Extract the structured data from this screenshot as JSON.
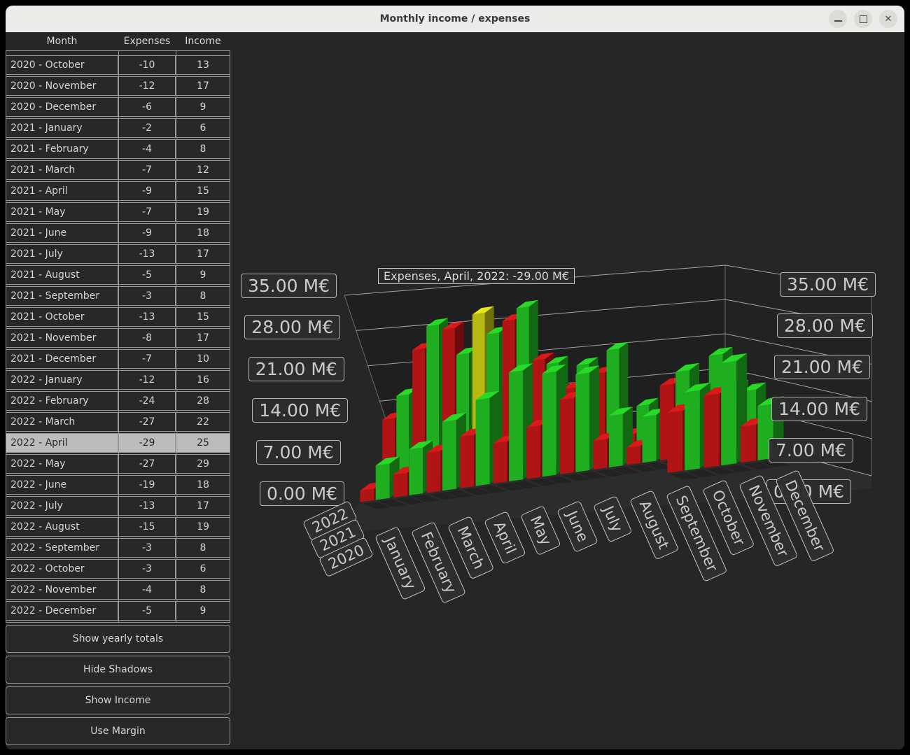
{
  "window": {
    "title": "Monthly income / expenses",
    "controls": {
      "minimize": "minimize",
      "maximize": "maximize",
      "close": "close"
    }
  },
  "table": {
    "columns": [
      "Month",
      "Expenses",
      "Income"
    ],
    "rows": [
      [
        "2020 - October",
        "-10",
        "13"
      ],
      [
        "2020 - November",
        "-12",
        "17"
      ],
      [
        "2020 - December",
        "-6",
        "9"
      ],
      [
        "2021 - January",
        "-2",
        "6"
      ],
      [
        "2021 - February",
        "-4",
        "8"
      ],
      [
        "2021 - March",
        "-7",
        "12"
      ],
      [
        "2021 - April",
        "-9",
        "15"
      ],
      [
        "2021 - May",
        "-7",
        "19"
      ],
      [
        "2021 - June",
        "-9",
        "18"
      ],
      [
        "2021 - July",
        "-13",
        "17"
      ],
      [
        "2021 - August",
        "-5",
        "9"
      ],
      [
        "2021 - September",
        "-3",
        "8"
      ],
      [
        "2021 - October",
        "-13",
        "15"
      ],
      [
        "2021 - November",
        "-8",
        "17"
      ],
      [
        "2021 - December",
        "-7",
        "10"
      ],
      [
        "2022 - January",
        "-12",
        "16"
      ],
      [
        "2022 - February",
        "-24",
        "28"
      ],
      [
        "2022 - March",
        "-27",
        "22"
      ],
      [
        "2022 - April",
        "-29",
        "25"
      ],
      [
        "2022 - May",
        "-27",
        "29"
      ],
      [
        "2022 - June",
        "-19",
        "18"
      ],
      [
        "2022 - July",
        "-13",
        "17"
      ],
      [
        "2022 - August",
        "-15",
        "19"
      ],
      [
        "2022 - September",
        "-3",
        "8"
      ],
      [
        "2022 - October",
        "-3",
        "6"
      ],
      [
        "2022 - November",
        "-4",
        "8"
      ],
      [
        "2022 - December",
        "-5",
        "9"
      ]
    ],
    "selected_row": "2022 - April"
  },
  "buttons": [
    "Show yearly totals",
    "Hide Shadows",
    "Show Income",
    "Use Margin"
  ],
  "chart_data": {
    "type": "bar",
    "projection": "3d",
    "tooltip": "Expenses, April, 2022: -29.00 M€",
    "value_axis": {
      "labels": [
        "35.00 M€",
        "28.00 M€",
        "21.00 M€",
        "14.00 M€",
        "7.00 M€",
        "0.00 M€"
      ],
      "ticks": [
        35,
        28,
        21,
        14,
        7,
        0
      ],
      "range": [
        0,
        35
      ],
      "unit": "M€"
    },
    "rows_back_to_front": [
      "2022",
      "2021",
      "2020"
    ],
    "categories": [
      "January",
      "February",
      "March",
      "April",
      "May",
      "June",
      "July",
      "August",
      "September",
      "October",
      "November",
      "December"
    ],
    "series": [
      {
        "name": "Expenses",
        "color": "#b01414",
        "by_year": {
          "2020": [
            null,
            null,
            null,
            null,
            null,
            null,
            null,
            null,
            null,
            -10,
            -12,
            -6
          ],
          "2021": [
            -2,
            -4,
            -7,
            -9,
            -7,
            -9,
            -13,
            -5,
            -3,
            -13,
            -8,
            -7
          ],
          "2022": [
            -12,
            -24,
            -27,
            -29,
            -27,
            -19,
            -13,
            -15,
            -3,
            -3,
            -4,
            -5
          ]
        }
      },
      {
        "name": "Income",
        "color": "#1fae1f",
        "by_year": {
          "2020": [
            null,
            null,
            null,
            null,
            null,
            null,
            null,
            null,
            null,
            13,
            17,
            9
          ],
          "2021": [
            6,
            8,
            12,
            15,
            19,
            18,
            17,
            9,
            8,
            15,
            17,
            10
          ],
          "2022": [
            16,
            28,
            22,
            25,
            29,
            18,
            17,
            19,
            8,
            6,
            8,
            9
          ]
        }
      }
    ],
    "selected_bar": {
      "series": "Expenses",
      "year": "2022",
      "month": "April",
      "color": "#b9b913"
    },
    "colors": {
      "background": "#262626",
      "wall": "#1f1f1f",
      "wall_right": "#222222",
      "floor": "#2c2c2c",
      "gridline": "#c6c6c6"
    }
  }
}
